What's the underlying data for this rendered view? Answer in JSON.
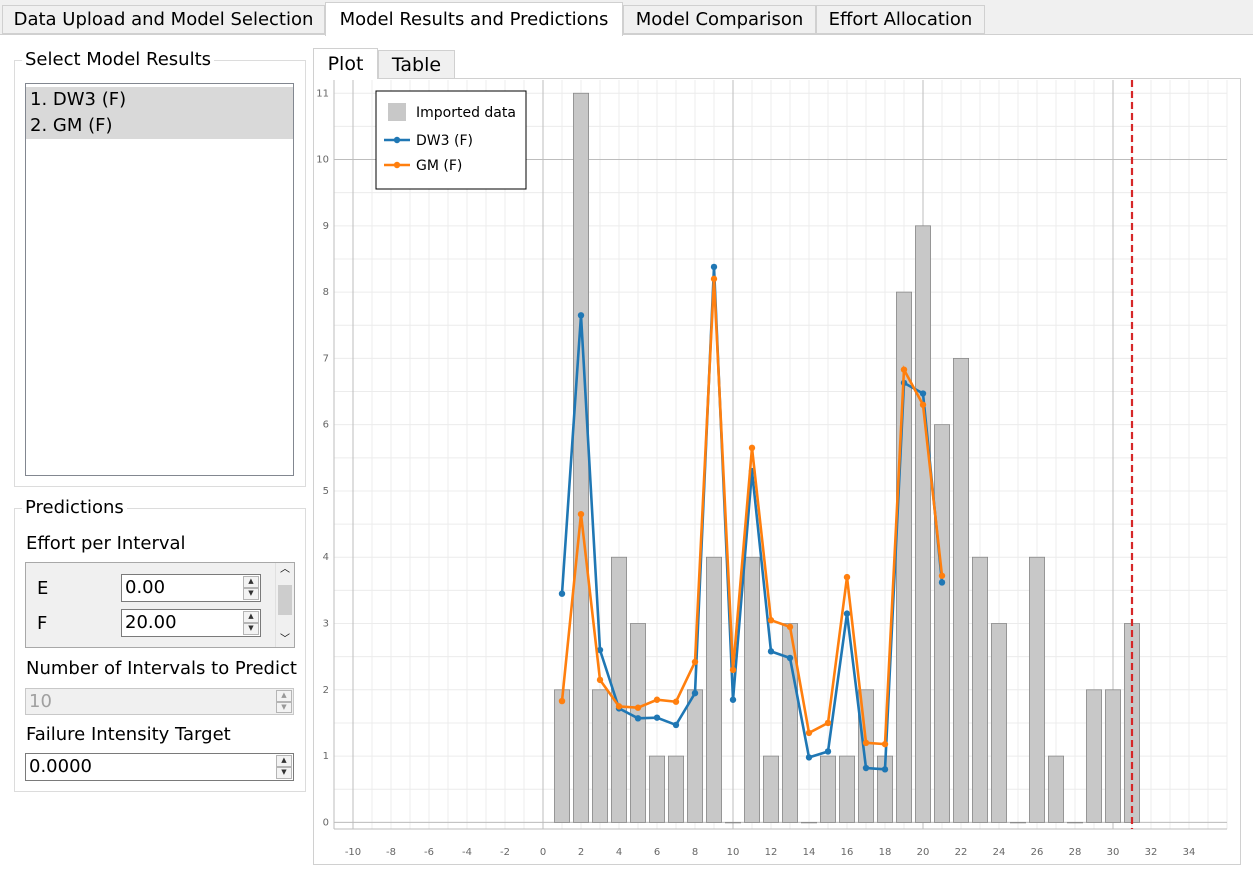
{
  "tabs": [
    {
      "label": "Data Upload and Model Selection",
      "active": false
    },
    {
      "label": "Model Results and Predictions",
      "active": true
    },
    {
      "label": "Model Comparison",
      "active": false
    },
    {
      "label": "Effort Allocation",
      "active": false
    }
  ],
  "select_results": {
    "title": "Select Model Results",
    "items": [
      "1. DW3 (F)",
      "2. GM (F)"
    ]
  },
  "predictions": {
    "title": "Predictions",
    "effort_label": "Effort per Interval",
    "effort_rows": [
      {
        "label": "E",
        "value": "0.00"
      },
      {
        "label": "F",
        "value": "20.00"
      }
    ],
    "intervals_label": "Number of Intervals to Predict",
    "intervals_value": "10",
    "target_label": "Failure Intensity Target",
    "target_value": "0.0000"
  },
  "subtabs": [
    {
      "label": "Plot",
      "active": true
    },
    {
      "label": "Table",
      "active": false
    }
  ],
  "colors": {
    "bar": "#c8c8c8",
    "dw3": "#1f77b4",
    "gm": "#ff7f0e",
    "vline": "#d62728"
  },
  "chart_data": {
    "type": "bar",
    "xlim": [
      -11,
      36
    ],
    "ylim": [
      -0.1,
      11.2
    ],
    "x_ticks": [
      -10,
      -8,
      -6,
      -4,
      -2,
      0,
      2,
      4,
      6,
      8,
      10,
      12,
      14,
      16,
      18,
      20,
      22,
      24,
      26,
      28,
      30,
      32,
      34
    ],
    "y_ticks": [
      0,
      1,
      2,
      3,
      4,
      5,
      6,
      7,
      8,
      9,
      10,
      11
    ],
    "vertical_line_x": 31,
    "legend": {
      "placement": "top-left",
      "entries": [
        "Imported data",
        "DW3 (F)",
        "GM (F)"
      ]
    },
    "bars": {
      "name": "Imported data",
      "x": [
        1,
        2,
        3,
        4,
        5,
        6,
        7,
        8,
        9,
        10,
        11,
        12,
        13,
        14,
        15,
        16,
        17,
        18,
        19,
        20,
        21,
        22,
        23,
        24,
        25,
        26,
        27,
        28,
        29,
        30,
        31
      ],
      "values": [
        2,
        11,
        2,
        4,
        3,
        1,
        1,
        2,
        4,
        0,
        4,
        1,
        3,
        0,
        1,
        1,
        2,
        1,
        8,
        9,
        6,
        7,
        4,
        3,
        0,
        4,
        1,
        0,
        2,
        2,
        3
      ]
    },
    "series": [
      {
        "name": "DW3 (F)",
        "x": [
          1,
          2,
          3,
          4,
          5,
          6,
          7,
          8,
          9,
          10,
          11,
          12,
          13,
          14,
          15,
          16,
          17,
          18,
          19,
          20,
          21
        ],
        "values": [
          3.45,
          7.65,
          2.6,
          1.72,
          1.57,
          1.58,
          1.47,
          1.95,
          8.38,
          1.85,
          5.3,
          2.58,
          2.48,
          0.98,
          1.07,
          3.15,
          0.82,
          0.8,
          6.63,
          6.47,
          3.62
        ]
      },
      {
        "name": "GM (F)",
        "x": [
          1,
          2,
          3,
          4,
          5,
          6,
          7,
          8,
          9,
          10,
          11,
          12,
          13,
          14,
          15,
          16,
          17,
          18,
          19,
          20,
          21
        ],
        "values": [
          1.83,
          4.65,
          2.15,
          1.75,
          1.73,
          1.85,
          1.82,
          2.42,
          8.2,
          2.3,
          5.65,
          3.05,
          2.95,
          1.35,
          1.5,
          3.7,
          1.2,
          1.18,
          6.83,
          6.3,
          3.72
        ]
      }
    ]
  }
}
